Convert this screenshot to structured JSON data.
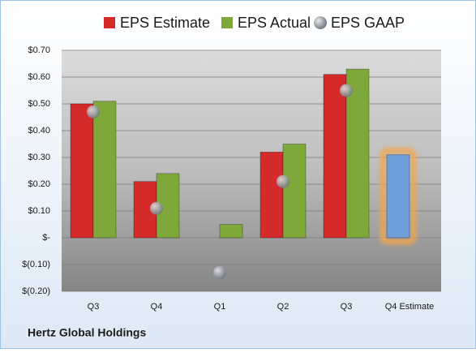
{
  "chart_data": {
    "type": "bar",
    "title": "Hertz Global Holdings",
    "categories": [
      "Q3",
      "Q4",
      "Q1",
      "Q2",
      "Q3",
      "Q4 Estimate"
    ],
    "series": [
      {
        "name": "EPS Estimate",
        "color": "#d42a2a",
        "kind": "bar",
        "values": [
          0.5,
          0.21,
          null,
          0.32,
          0.61,
          0.31
        ],
        "highlight": {
          "index": 5,
          "color": "#6f9fd8",
          "glow": "#f4a64a"
        }
      },
      {
        "name": "EPS Actual",
        "color": "#7fa83a",
        "kind": "bar",
        "values": [
          0.51,
          0.24,
          0.05,
          0.35,
          0.63,
          null
        ]
      },
      {
        "name": "EPS GAAP",
        "color": "#9aa3ad",
        "kind": "dot",
        "values": [
          0.47,
          0.11,
          -0.13,
          0.21,
          0.55,
          null
        ]
      }
    ],
    "ylim": [
      -0.2,
      0.7
    ],
    "yticks": [
      {
        "value": 0.7,
        "label": "$0.70"
      },
      {
        "value": 0.6,
        "label": "$0.60"
      },
      {
        "value": 0.5,
        "label": "$0.50"
      },
      {
        "value": 0.4,
        "label": "$0.40"
      },
      {
        "value": 0.3,
        "label": "$0.30"
      },
      {
        "value": 0.2,
        "label": "$0.20"
      },
      {
        "value": 0.1,
        "label": "$0.10"
      },
      {
        "value": 0,
        "label": "$-"
      },
      {
        "value": -0.1,
        "label": "$(0.10)"
      },
      {
        "value": -0.2,
        "label": "$(0.20)"
      }
    ],
    "grid": true,
    "legend": "top"
  }
}
